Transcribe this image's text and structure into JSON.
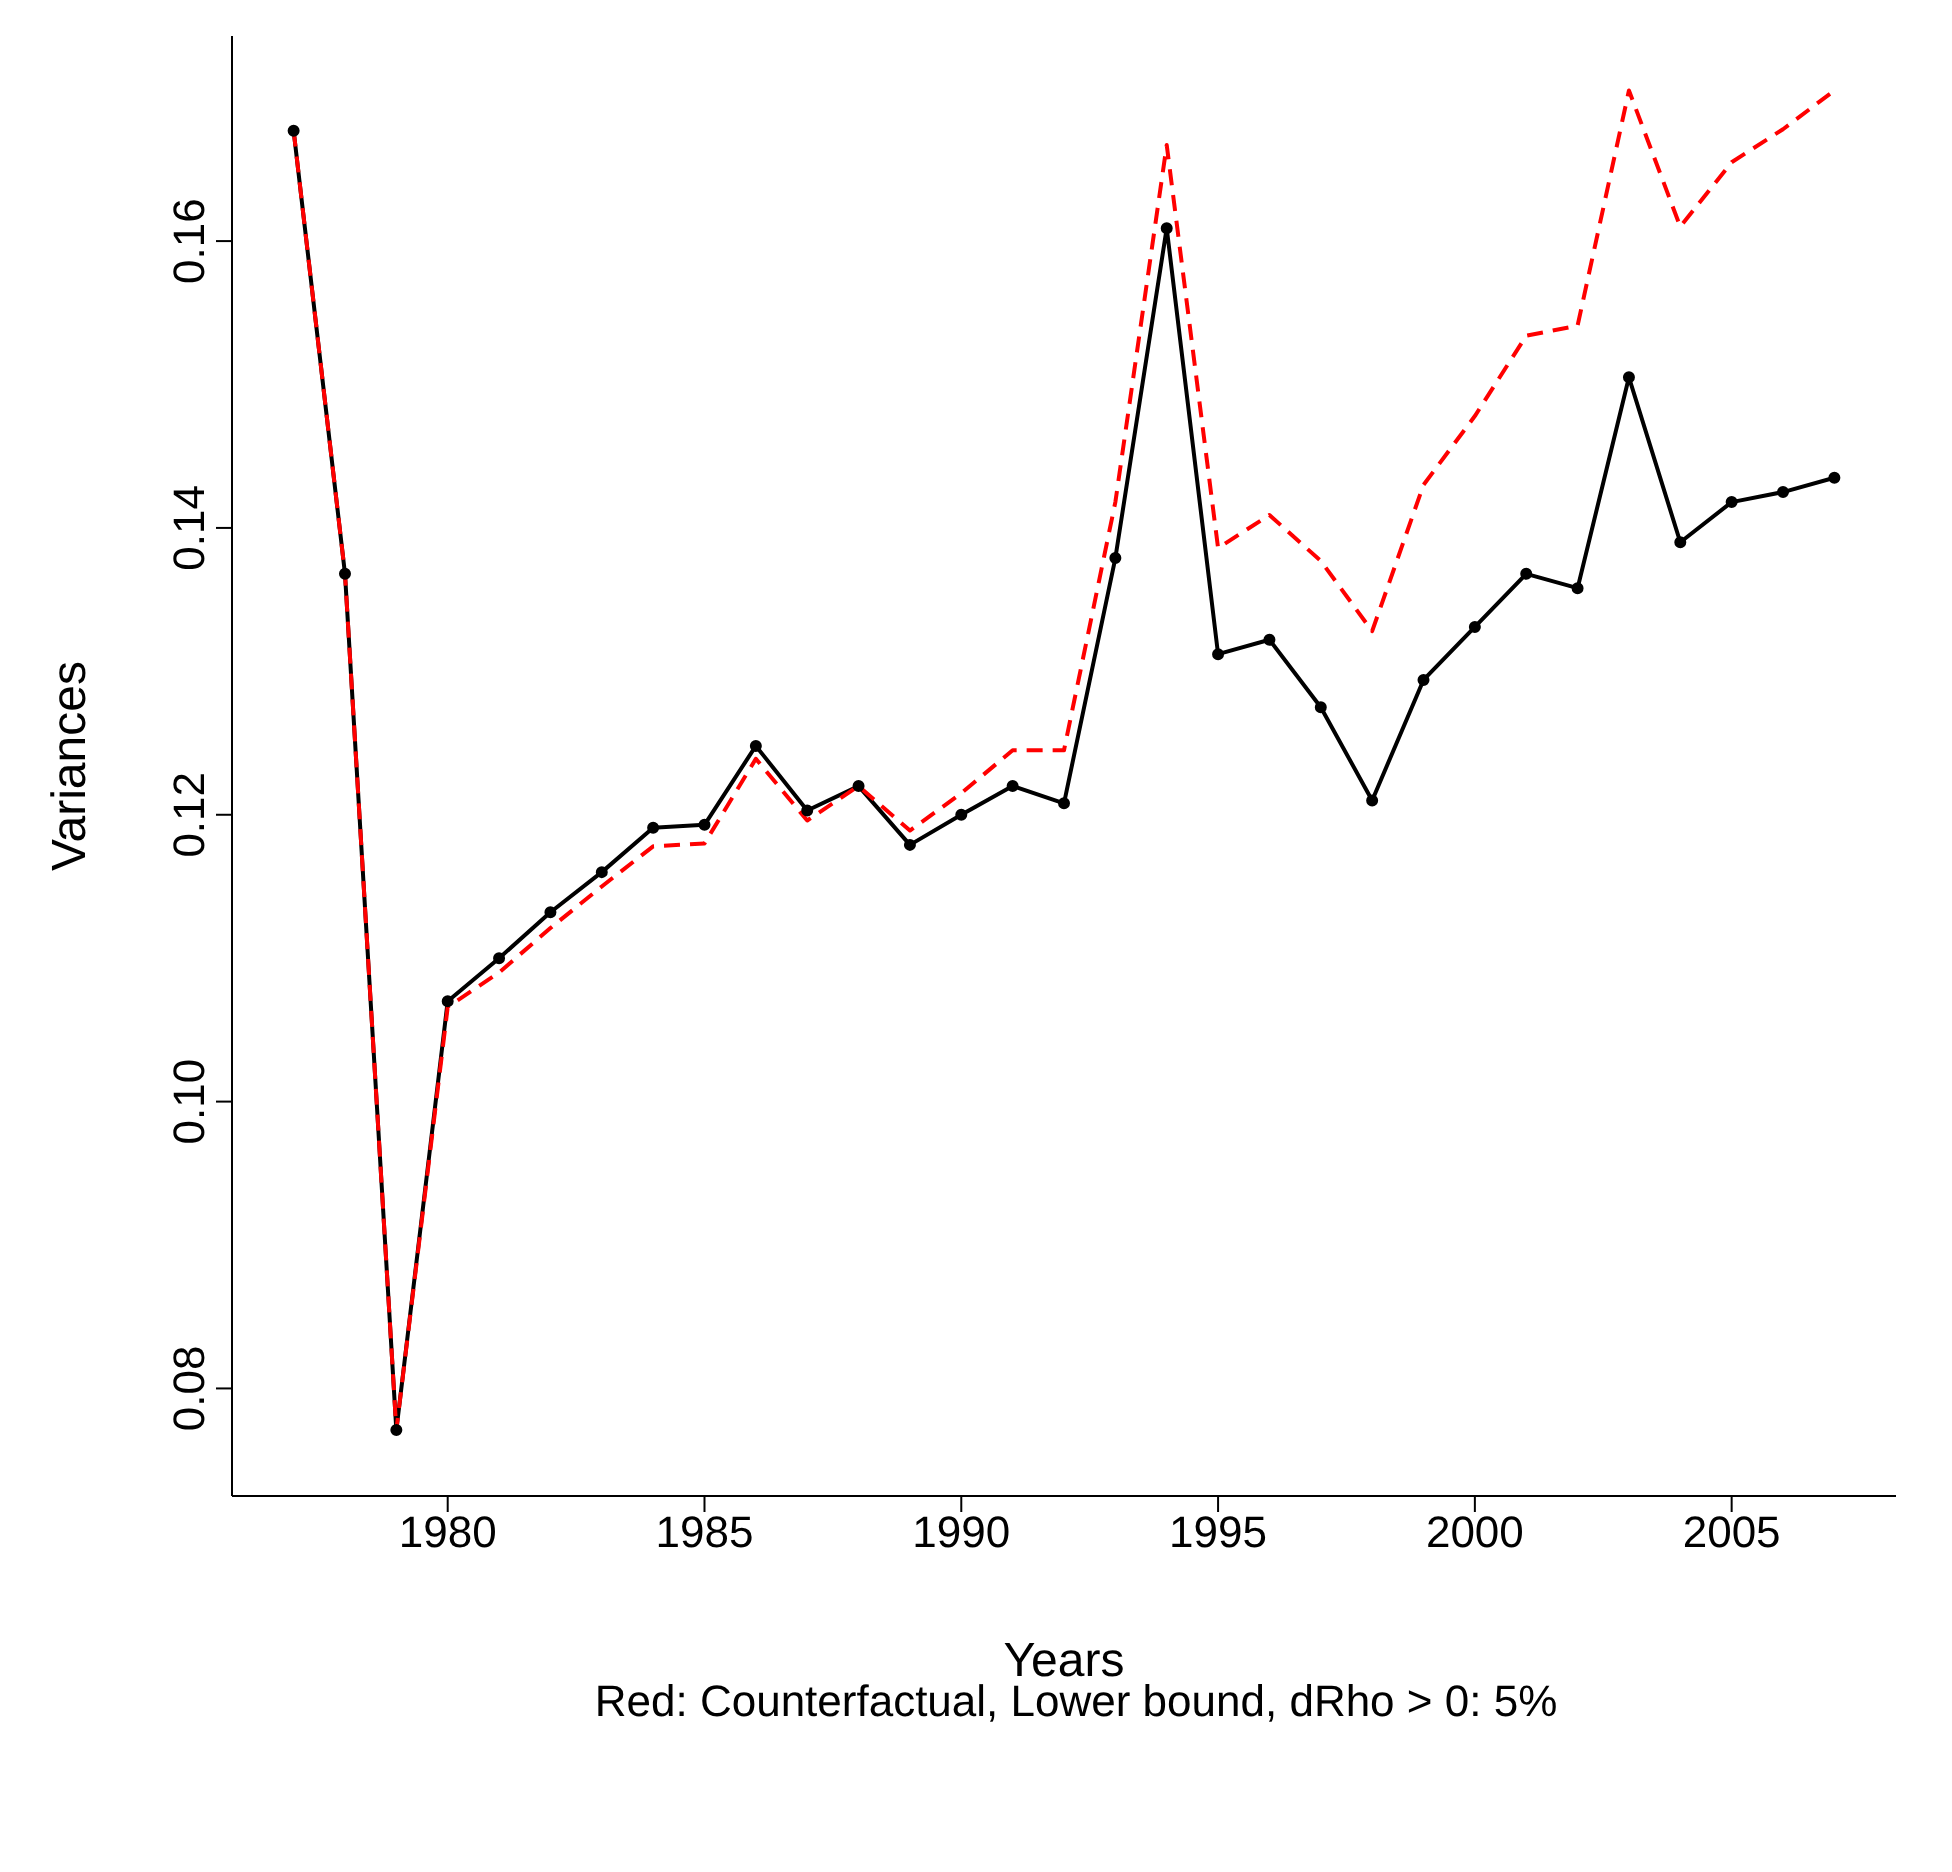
{
  "chart_data": {
    "type": "line",
    "xlabel": "Years",
    "ylabel": "Variances",
    "annotations": [
      "Red: Counterfactual, Lower bound, dRho > 0: 5%"
    ],
    "x": [
      1977,
      1978,
      1979,
      1980,
      1981,
      1982,
      1983,
      1984,
      1985,
      1986,
      1987,
      1988,
      1989,
      1990,
      1991,
      1992,
      1993,
      1994,
      1995,
      1996,
      1997,
      1998,
      1999,
      2000,
      2001,
      2002,
      2003,
      2004,
      2005,
      2006,
      2007
    ],
    "series": [
      {
        "color": "#000000",
        "marker": "circle",
        "line_style": "solid",
        "values": [
          0.1677,
          0.1368,
          0.0771,
          0.107,
          0.11,
          0.1132,
          0.116,
          0.1191,
          0.1193,
          0.1248,
          0.1203,
          0.122,
          0.1179,
          0.12,
          0.122,
          0.1208,
          0.1379,
          0.1609,
          0.1312,
          0.1322,
          0.1275,
          0.121,
          0.1294,
          0.1331,
          0.1368,
          0.1358,
          0.1505,
          0.139,
          0.1418,
          0.1425,
          0.1435
        ]
      },
      {
        "color": "#ff0000",
        "marker": "none",
        "line_style": "dashed",
        "values": [
          0.1677,
          0.1368,
          0.0771,
          0.1066,
          0.109,
          0.1121,
          0.115,
          0.1178,
          0.118,
          0.1239,
          0.1196,
          0.122,
          0.1189,
          0.1215,
          0.1245,
          0.1245,
          0.1418,
          0.1667,
          0.1386,
          0.1409,
          0.1377,
          0.1328,
          0.143,
          0.1478,
          0.1534,
          0.1541,
          0.1705,
          0.161,
          0.1655,
          0.1678,
          0.1705
        ]
      }
    ],
    "xlim": [
      1975.8,
      2008.2
    ],
    "xticks": [
      1980,
      1985,
      1990,
      1995,
      2000,
      2005
    ],
    "ylim": [
      0.0725,
      0.1743
    ],
    "yticks": [
      0.08,
      {
        "value": 0.1,
        "label": "0.10"
      },
      0.12,
      0.14,
      0.16
    ]
  }
}
